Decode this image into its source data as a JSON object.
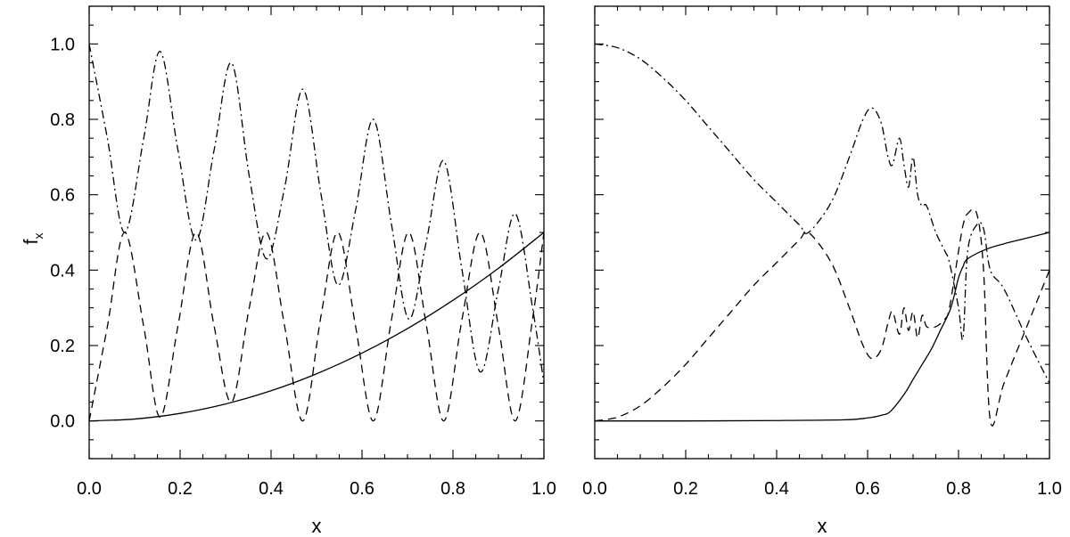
{
  "chart_data": [
    {
      "type": "line",
      "panel": "left",
      "xlabel": "x",
      "ylabel": "f",
      "ylabel_subscript": "x",
      "xlim": [
        0.0,
        1.0
      ],
      "ylim": [
        -0.1,
        1.1
      ],
      "xticks": [
        "0.0",
        "0.2",
        "0.4",
        "0.6",
        "0.8",
        "1.0"
      ],
      "yticks": [
        "0.0",
        "0.2",
        "0.4",
        "0.6",
        "0.8",
        "1.0"
      ],
      "series": [
        {
          "style": "solid",
          "x": [
            0.0,
            0.1,
            0.2,
            0.3,
            0.4,
            0.5,
            0.6,
            0.7,
            0.8,
            0.9,
            1.0
          ],
          "y": [
            0.0,
            0.005,
            0.02,
            0.045,
            0.08,
            0.125,
            0.18,
            0.245,
            0.32,
            0.405,
            0.5
          ]
        },
        {
          "style": "dashed",
          "x": [
            0.0,
            0.04,
            0.078,
            0.12,
            0.156,
            0.195,
            0.235,
            0.275,
            0.313,
            0.352,
            0.39,
            0.43,
            0.47,
            0.51,
            0.547,
            0.586,
            0.625,
            0.665,
            0.703,
            0.742,
            0.78,
            0.82,
            0.86,
            0.9,
            0.937,
            0.975,
            1.0
          ],
          "y": [
            0.0,
            0.25,
            0.5,
            0.25,
            0.01,
            0.25,
            0.5,
            0.25,
            0.05,
            0.3,
            0.5,
            0.25,
            0.0,
            0.28,
            0.5,
            0.25,
            0.0,
            0.27,
            0.5,
            0.25,
            0.0,
            0.27,
            0.5,
            0.25,
            0.0,
            0.27,
            0.5
          ]
        },
        {
          "style": "dashdot",
          "x": [
            0.0,
            0.04,
            0.078,
            0.12,
            0.156,
            0.195,
            0.235,
            0.275,
            0.313,
            0.352,
            0.39,
            0.43,
            0.47,
            0.51,
            0.547,
            0.586,
            0.625,
            0.665,
            0.703,
            0.742,
            0.78,
            0.82,
            0.86,
            0.9,
            0.937,
            0.975,
            1.0
          ],
          "y": [
            1.0,
            0.75,
            0.5,
            0.75,
            0.98,
            0.72,
            0.48,
            0.72,
            0.95,
            0.65,
            0.43,
            0.62,
            0.88,
            0.6,
            0.36,
            0.56,
            0.8,
            0.52,
            0.27,
            0.48,
            0.69,
            0.4,
            0.13,
            0.35,
            0.55,
            0.3,
            0.1
          ]
        }
      ]
    },
    {
      "type": "line",
      "panel": "right",
      "xlabel": "x",
      "xlim": [
        0.0,
        1.0
      ],
      "ylim": [
        -0.1,
        1.1
      ],
      "xticks": [
        "0.0",
        "0.2",
        "0.4",
        "0.6",
        "0.8",
        "1.0"
      ],
      "yticks": [],
      "series": [
        {
          "style": "solid",
          "x": [
            0.0,
            0.2,
            0.4,
            0.55,
            0.6,
            0.63,
            0.65,
            0.68,
            0.7,
            0.72,
            0.74,
            0.76,
            0.78,
            0.79,
            0.8,
            0.81,
            0.82,
            0.86,
            0.9,
            0.95,
            1.0
          ],
          "y": [
            0.0,
            0.0,
            0.001,
            0.003,
            0.008,
            0.015,
            0.025,
            0.07,
            0.11,
            0.15,
            0.19,
            0.24,
            0.29,
            0.33,
            0.38,
            0.41,
            0.43,
            0.455,
            0.47,
            0.485,
            0.5
          ]
        },
        {
          "style": "dashed",
          "x": [
            0.0,
            0.05,
            0.1,
            0.15,
            0.2,
            0.25,
            0.3,
            0.35,
            0.4,
            0.45,
            0.47,
            0.52,
            0.56,
            0.59,
            0.61,
            0.63,
            0.645,
            0.655,
            0.67,
            0.68,
            0.69,
            0.7,
            0.71,
            0.72,
            0.73,
            0.75,
            0.77,
            0.78,
            0.8,
            0.81,
            0.82,
            0.84,
            0.855,
            0.87,
            0.9,
            0.95,
            1.0
          ],
          "y": [
            0.0,
            0.01,
            0.04,
            0.09,
            0.15,
            0.22,
            0.29,
            0.36,
            0.42,
            0.48,
            0.5,
            0.42,
            0.3,
            0.2,
            0.165,
            0.19,
            0.26,
            0.29,
            0.23,
            0.3,
            0.24,
            0.29,
            0.22,
            0.28,
            0.25,
            0.25,
            0.27,
            0.3,
            0.45,
            0.52,
            0.55,
            0.55,
            0.4,
            0.0,
            0.1,
            0.25,
            0.4
          ]
        },
        {
          "style": "dashdot",
          "x": [
            0.0,
            0.05,
            0.1,
            0.15,
            0.2,
            0.25,
            0.3,
            0.35,
            0.4,
            0.45,
            0.47,
            0.52,
            0.56,
            0.59,
            0.61,
            0.63,
            0.645,
            0.655,
            0.67,
            0.68,
            0.69,
            0.7,
            0.71,
            0.72,
            0.73,
            0.75,
            0.77,
            0.78,
            0.8,
            0.81,
            0.82,
            0.84,
            0.855,
            0.87,
            0.9,
            0.95,
            1.0
          ],
          "y": [
            1.0,
            0.99,
            0.96,
            0.91,
            0.85,
            0.78,
            0.71,
            0.64,
            0.58,
            0.52,
            0.5,
            0.58,
            0.7,
            0.8,
            0.83,
            0.79,
            0.7,
            0.68,
            0.75,
            0.68,
            0.62,
            0.7,
            0.6,
            0.57,
            0.57,
            0.5,
            0.45,
            0.42,
            0.3,
            0.22,
            0.45,
            0.52,
            0.51,
            0.4,
            0.35,
            0.22,
            0.1
          ]
        }
      ]
    }
  ]
}
